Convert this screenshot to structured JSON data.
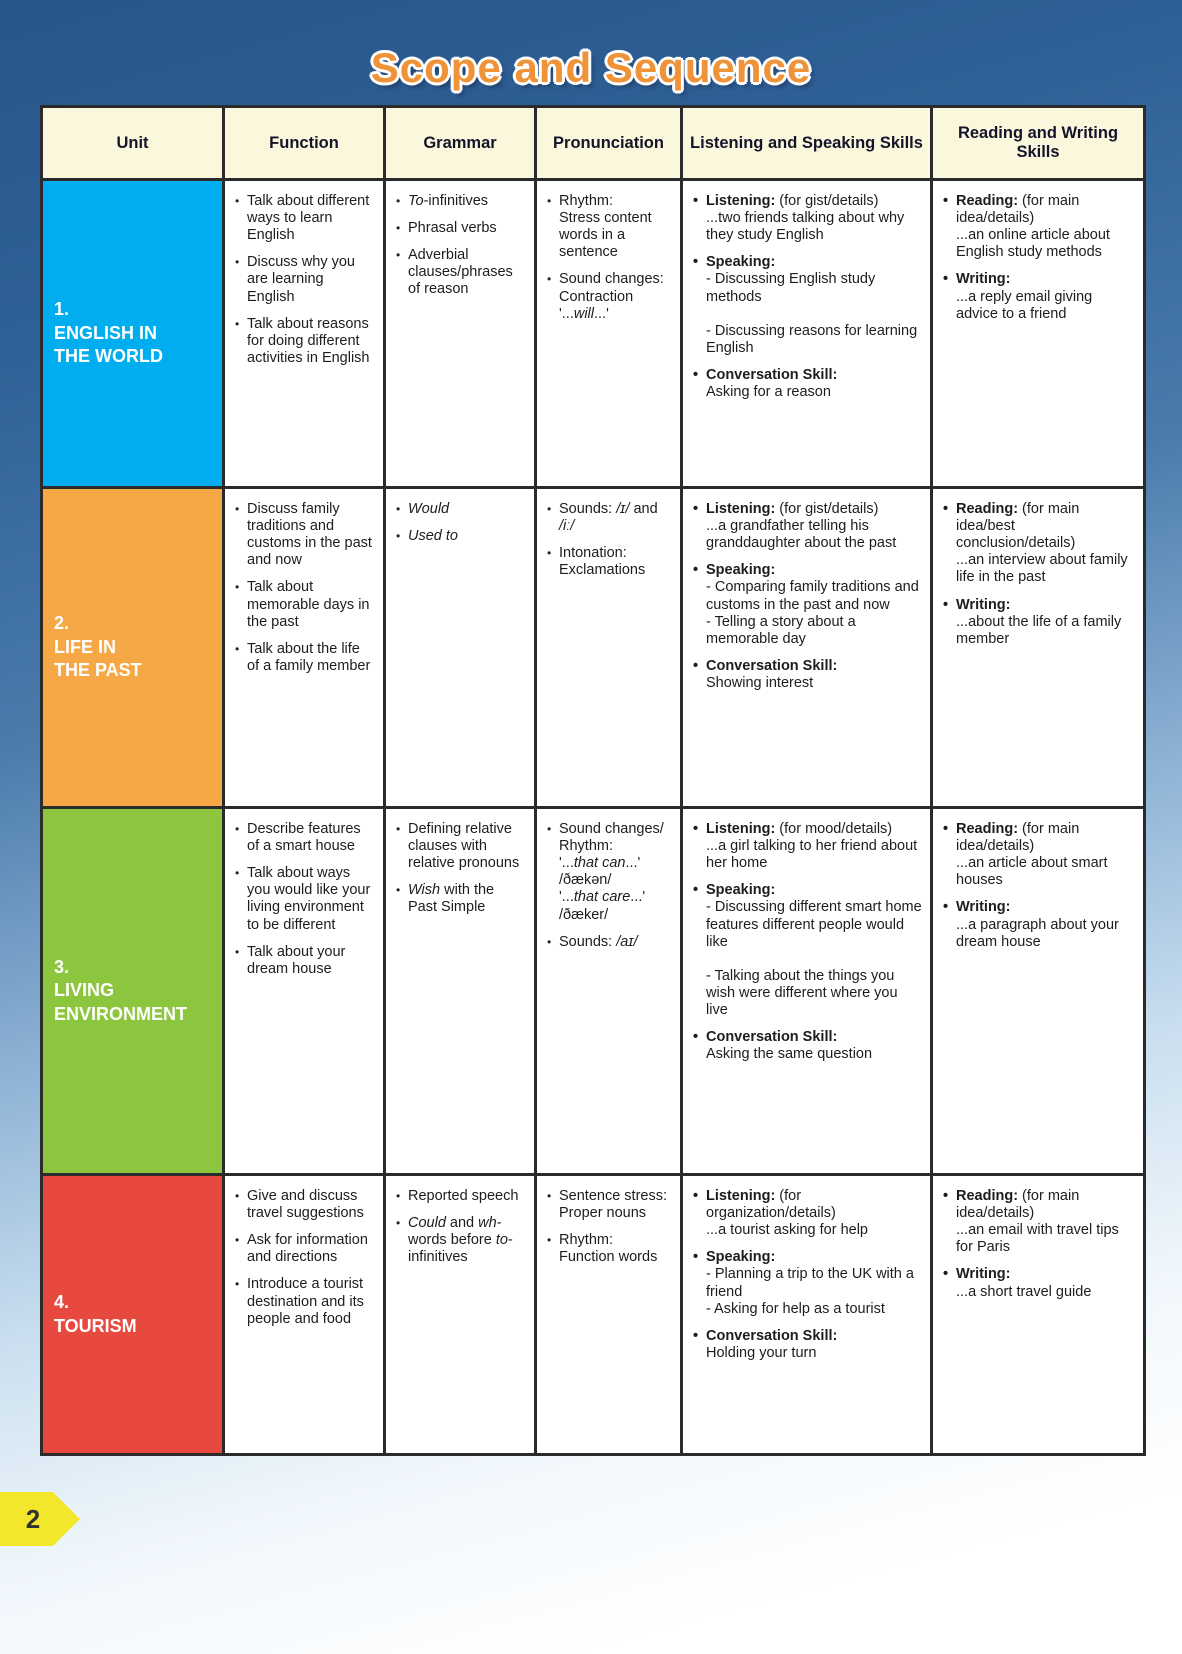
{
  "title": "Scope and Sequence",
  "page_number": "2",
  "colors": {
    "title_orange": "#EF9339",
    "header_bg": "#FAF7DC",
    "table_border": "#2B2B2B",
    "page_tab_yellow": "#F2E72B",
    "unit1_blue": "#00AEEF",
    "unit2_orange": "#F6A847",
    "unit3_green": "#8CC63F",
    "unit4_red": "#E8493F"
  },
  "table": {
    "headers": [
      "Unit",
      "Function",
      "Grammar",
      "Pronunciation",
      "Listening and Speaking Skills",
      "Reading and Writing Skills"
    ],
    "rows": [
      {
        "unit_number": "1.",
        "unit_name": "ENGLISH IN<br>THE WORLD",
        "color": "#00AEEF",
        "function": [
          "Talk about different ways to learn English",
          "Discuss why you are learning English",
          "Talk about reasons for doing different activities in English"
        ],
        "grammar": [
          "<i>To</i>-infinitives",
          "Phrasal verbs",
          "Adverbial clauses/phrases of reason"
        ],
        "pronunciation": [
          "Rhythm:<br>Stress content words in a sentence",
          "Sound changes:<br>Contraction<br>'...<i>will</i>...'"
        ],
        "listening_speaking": [
          "<b>Listening:</b> (for gist/details)<br>...two friends talking about why they study English",
          "<b>Speaking:</b><br>- Discussing English study methods<br><br>- Discussing reasons for learning English",
          "<b>Conversation Skill:</b><br>Asking for a reason"
        ],
        "reading_writing": [
          "<b>Reading:</b> (for main idea/details)<br>...an online article about English study methods",
          "<b>Writing:</b><br>...a reply email giving advice to a friend"
        ]
      },
      {
        "unit_number": "2.",
        "unit_name": "LIFE IN<br>THE PAST",
        "color": "#F6A847",
        "function": [
          "Discuss family traditions and customs in the past and now",
          "Talk about memorable days in the past",
          "Talk about the life of a family member"
        ],
        "grammar": [
          "<i>Would</i>",
          "<i>Used to</i>"
        ],
        "pronunciation": [
          "Sounds: <i>/ɪ/</i> and <i>/iː/</i>",
          "Intonation:<br>Exclamations"
        ],
        "listening_speaking": [
          "<b>Listening:</b> (for gist/details)<br>...a grandfather telling his granddaughter about the past",
          "<b>Speaking:</b><br>- Comparing family traditions and customs in the past and now<br>- Telling a story about a memorable day",
          "<b>Conversation Skill:</b><br>Showing interest"
        ],
        "reading_writing": [
          "<b>Reading:</b> (for main idea/best conclusion/details)<br>...an interview about family life in the past",
          "<b>Writing:</b><br>...about the life of a family member"
        ]
      },
      {
        "unit_number": "3.",
        "unit_name": "LIVING<br>ENVIRONMENT",
        "color": "#8CC63F",
        "function": [
          "Describe features of a smart house",
          "Talk about ways you would like your living environment to be different",
          "Talk about your dream house"
        ],
        "grammar": [
          "Defining relative clauses with relative pronouns",
          "<i>Wish</i> with the Past Simple"
        ],
        "pronunciation": [
          "Sound changes/<br>Rhythm:<br>'...<i>that can</i>...'<br>/ðækən/<br>'...<i>that care</i>...'<br>/ðæker/",
          "Sounds: <i>/aɪ/</i>"
        ],
        "listening_speaking": [
          "<b>Listening:</b> (for mood/details)<br>...a girl talking to her friend about her home",
          "<b>Speaking:</b><br>- Discussing different smart home features different people would like<br><br>- Talking about the things you wish were different where you live",
          "<b>Conversation Skill:</b><br>Asking the same question"
        ],
        "reading_writing": [
          "<b>Reading:</b> (for main idea/details)<br>...an article about smart houses",
          "<b>Writing:</b><br>...a paragraph about your dream house"
        ]
      },
      {
        "unit_number": "4.",
        "unit_name": "TOURISM",
        "color": "#E8493F",
        "function": [
          "Give and discuss travel suggestions",
          "Ask for information and directions",
          "Introduce a tourist destination and its people and food"
        ],
        "grammar": [
          "Reported speech",
          "<i>Could</i> and <i>wh</i>-words before <i>to</i>-infinitives"
        ],
        "pronunciation": [
          "Sentence stress: Proper nouns",
          "Rhythm:<br>Function words"
        ],
        "listening_speaking": [
          "<b>Listening:</b> (for organization/details)<br>...a tourist asking for help",
          "<b>Speaking:</b><br>- Planning a trip to the UK with a friend<br>- Asking for help as a tourist",
          "<b>Conversation Skill:</b><br>Holding your turn"
        ],
        "reading_writing": [
          "<b>Reading:</b> (for main idea/details)<br>...an email with travel tips for Paris",
          "<b>Writing:</b><br>...a short travel guide"
        ]
      }
    ]
  }
}
